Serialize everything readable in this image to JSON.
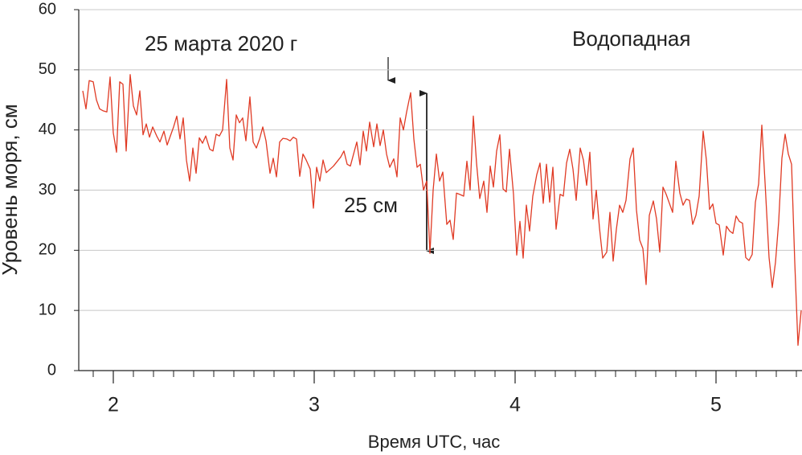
{
  "chart_data": {
    "type": "line",
    "ylabel": "Уровень моря, см",
    "xlabel": "Время UTC, час",
    "annotations": [
      "25 марта 2020 г",
      "Водопадная",
      "25 см"
    ],
    "xlim": [
      1.828,
      5.428
    ],
    "ylim": [
      0,
      60
    ],
    "xticks": [
      2,
      3,
      4,
      5
    ],
    "xminorticks": [
      1.9,
      2.1,
      2.2,
      2.3,
      2.4,
      2.5,
      2.6,
      2.7,
      2.8,
      2.9,
      3.1,
      3.2,
      3.3,
      3.4,
      3.5,
      3.6,
      3.7,
      3.8,
      3.9,
      4.1,
      4.2,
      4.3,
      4.4,
      4.5,
      4.6,
      4.7,
      4.8,
      4.9,
      5.1,
      5.2,
      5.3,
      5.4
    ],
    "yticks": [
      0,
      10,
      20,
      30,
      40,
      50,
      60
    ],
    "grid": true,
    "series": [
      {
        "color": "#e03a24",
        "x": [
          1.848,
          1.864,
          1.88,
          1.9,
          1.916,
          1.932,
          1.948,
          1.968,
          1.984,
          2,
          2.016,
          2.032,
          2.048,
          2.064,
          2.084,
          2.1,
          2.116,
          2.132,
          2.148,
          2.164,
          2.18,
          2.196,
          2.216,
          2.232,
          2.252,
          2.268,
          2.284,
          2.3,
          2.316,
          2.332,
          2.348,
          2.364,
          2.38,
          2.396,
          2.412,
          2.428,
          2.444,
          2.46,
          2.48,
          2.496,
          2.512,
          2.528,
          2.544,
          2.564,
          2.58,
          2.596,
          2.612,
          2.628,
          2.644,
          2.66,
          2.68,
          2.696,
          2.712,
          2.728,
          2.744,
          2.76,
          2.78,
          2.796,
          2.812,
          2.828,
          2.844,
          2.864,
          2.88,
          2.896,
          2.912,
          2.928,
          2.944,
          2.96,
          2.98,
          2.996,
          3.012,
          3.028,
          3.044,
          3.06,
          3.096,
          3.132,
          3.148,
          3.164,
          3.18,
          3.196,
          3.212,
          3.228,
          3.244,
          3.26,
          3.276,
          3.296,
          3.312,
          3.328,
          3.344,
          3.36,
          3.376,
          3.396,
          3.412,
          3.428,
          3.444,
          3.46,
          3.48,
          3.496,
          3.512,
          3.528,
          3.544,
          3.56,
          3.576,
          3.592,
          3.608,
          3.624,
          3.64,
          3.66,
          3.676,
          3.692,
          3.708,
          3.724,
          3.744,
          3.76,
          3.776,
          3.792,
          3.808,
          3.824,
          3.844,
          3.86,
          3.876,
          3.892,
          3.908,
          3.924,
          3.94,
          3.956,
          3.972,
          3.992,
          4.008,
          4.024,
          4.04,
          4.056,
          4.072,
          4.088,
          4.108,
          4.124,
          4.14,
          4.156,
          4.172,
          4.188,
          4.204,
          4.224,
          4.24,
          4.256,
          4.272,
          4.288,
          4.304,
          4.324,
          4.34,
          4.356,
          4.372,
          4.388,
          4.404,
          4.42,
          4.436,
          4.456,
          4.472,
          4.488,
          4.504,
          4.52,
          4.536,
          4.552,
          4.572,
          4.588,
          4.604,
          4.62,
          4.636,
          4.652,
          4.668,
          4.688,
          4.704,
          4.72,
          4.736,
          4.752,
          4.768,
          4.784,
          4.8,
          4.82,
          4.836,
          4.852,
          4.868,
          4.884,
          4.9,
          4.916,
          4.936,
          4.952,
          4.968,
          4.984,
          5,
          5.016,
          5.036,
          5.052,
          5.068,
          5.084,
          5.1,
          5.116,
          5.132,
          5.148,
          5.164,
          5.18,
          5.196,
          5.212,
          5.228,
          5.244,
          5.264,
          5.28,
          5.296,
          5.312,
          5.328,
          5.344,
          5.36,
          5.376,
          5.392,
          5.408,
          5.424
        ],
        "values": [
          46.5,
          43.5,
          48.2,
          48,
          45,
          43.5,
          43.2,
          43,
          48.8,
          39.5,
          36.3,
          48,
          47.6,
          36.5,
          49.2,
          44,
          42.5,
          46.5,
          39.2,
          41,
          38.8,
          40.5,
          39,
          38,
          39.8,
          37.5,
          39,
          40.5,
          42.3,
          38.5,
          42,
          35,
          31.5,
          37,
          32.8,
          38.7,
          37.8,
          39,
          36.8,
          36.5,
          39.3,
          39,
          40,
          48.4,
          37,
          35,
          42.5,
          41.2,
          42,
          38.2,
          45.5,
          38,
          37,
          38.5,
          40.5,
          38.2,
          32.8,
          35.3,
          32.2,
          38,
          38.6,
          38.5,
          38.2,
          38.8,
          38.5,
          32.3,
          36,
          35,
          33.5,
          27,
          33.8,
          31.5,
          35,
          32.9,
          34,
          35.5,
          36.5,
          34.3,
          34,
          36,
          38,
          34.2,
          39.8,
          36.5,
          41.3,
          37.2,
          41,
          37.4,
          40,
          36,
          33.8,
          35.2,
          32.2,
          42,
          40,
          43,
          46.2,
          38.5,
          33.8,
          34.3,
          30,
          31.5,
          19.5,
          30,
          36,
          31.5,
          33,
          24.3,
          25,
          21.8,
          29.5,
          29.3,
          29,
          34.8,
          30,
          42.3,
          34.5,
          28.6,
          31.5,
          26.3,
          34,
          30.5,
          36.5,
          39.2,
          30.2,
          29.7,
          36.8,
          29.3,
          19.2,
          24.8,
          18.7,
          27.5,
          23.2,
          29,
          32.6,
          34.5,
          27.8,
          34.3,
          28,
          33.8,
          23.5,
          29.3,
          29,
          34.5,
          36.8,
          33.5,
          28.3,
          37,
          35,
          30.8,
          36.3,
          25.2,
          30,
          23.7,
          18.7,
          19.7,
          26.3,
          18.2,
          23.5,
          27.5,
          26.3,
          28.3,
          35.2,
          37,
          26.7,
          21.7,
          20.3,
          14.3,
          25.8,
          28.2,
          25.2,
          19.7,
          30.5,
          29.3,
          27.8,
          26.3,
          34.8,
          29.5,
          27.5,
          28.5,
          28.3,
          24.3,
          25.8,
          29,
          39.8,
          35,
          26.8,
          27.7,
          24.5,
          24.2,
          19.2,
          24,
          23.2,
          22.8,
          25.7,
          24.8,
          24.5,
          18.8,
          18.3,
          19.3,
          28,
          31,
          40.8,
          31.3,
          18.8,
          13.8,
          18,
          24.8,
          35.3,
          39.3,
          36,
          34.3,
          18,
          4.2,
          10
        ]
      }
    ]
  }
}
